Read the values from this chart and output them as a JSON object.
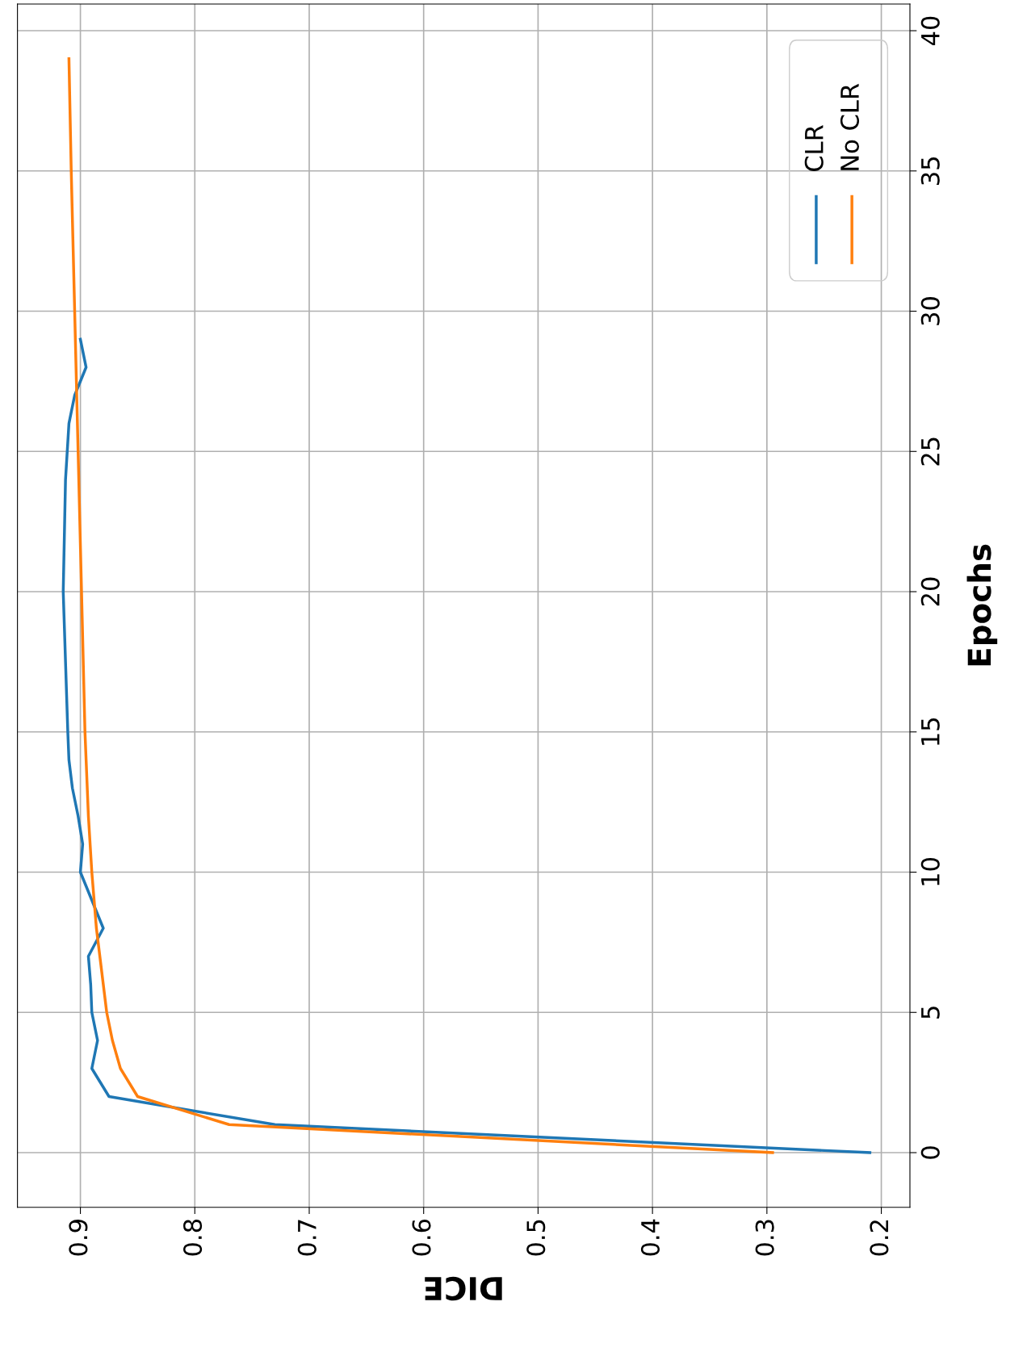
{
  "chart_data": {
    "type": "line",
    "xlabel": "DICE",
    "ylabel": "Epochs",
    "xlim": [
      0.955,
      0.175
    ],
    "xticks": [
      0.9,
      0.8,
      0.7,
      0.6,
      0.5,
      0.4,
      0.3,
      0.2
    ],
    "ylim": [
      -1.95,
      40.95
    ],
    "yticks": [
      0,
      5,
      10,
      15,
      20,
      25,
      30,
      35,
      40
    ],
    "grid": true,
    "legend": "top right",
    "series": [
      {
        "name": "CLR",
        "color": "#1f77b4",
        "x": [
          0.21,
          0.73,
          0.875,
          0.89,
          0.885,
          0.89,
          0.891,
          0.893,
          0.88,
          0.89,
          0.9,
          0.898,
          0.902,
          0.907,
          0.91,
          0.911,
          0.915,
          0.913,
          0.91,
          0.905,
          0.895,
          0.9
        ],
        "values": [
          0,
          1,
          2,
          3,
          4,
          5,
          6,
          7,
          8,
          9,
          10,
          11,
          12,
          13,
          14,
          15,
          20,
          24,
          26,
          27,
          28,
          29
        ]
      },
      {
        "name": "No CLR",
        "color": "#ff7f0e",
        "x": [
          0.295,
          0.77,
          0.85,
          0.865,
          0.872,
          0.877,
          0.88,
          0.883,
          0.886,
          0.888,
          0.89,
          0.893,
          0.895,
          0.896,
          0.899,
          0.902,
          0.905,
          0.908,
          0.91
        ],
        "values": [
          0,
          1,
          2,
          3,
          4,
          5,
          6,
          7,
          8,
          9,
          10,
          12,
          14,
          15,
          20,
          25,
          30,
          35,
          39
        ]
      }
    ]
  }
}
